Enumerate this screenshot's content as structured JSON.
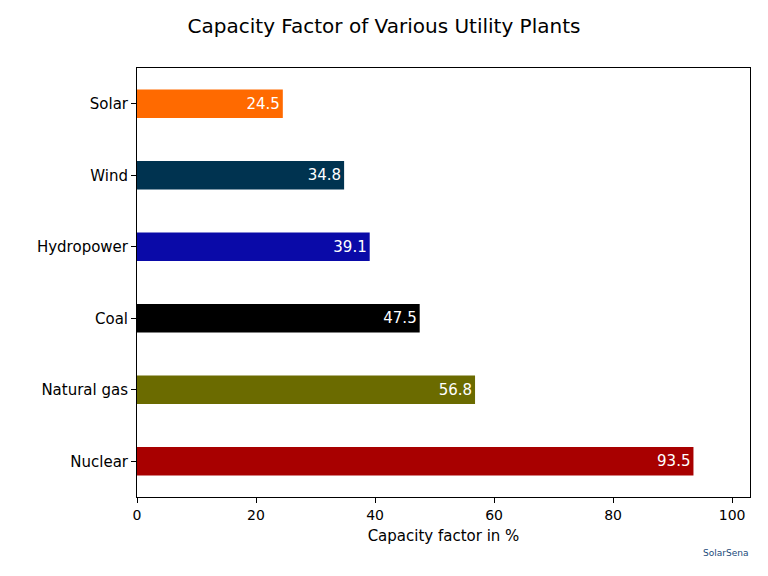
{
  "chart_data": {
    "type": "bar",
    "orientation": "horizontal",
    "title": "Capacity Factor of Various Utility Plants",
    "x_label": "Capacity factor in %",
    "categories": [
      "Solar",
      "Wind",
      "Hydropower",
      "Coal",
      "Natural gas",
      "Nuclear"
    ],
    "values": [
      24.5,
      34.8,
      39.1,
      47.5,
      56.8,
      93.5
    ],
    "colors": [
      "#ff6a00",
      "#003350",
      "#0a0aa8",
      "#000000",
      "#6b6b00",
      "#a80000"
    ],
    "xlim": [
      0,
      103
    ],
    "xticks": [
      0,
      20,
      40,
      60,
      80,
      100
    ],
    "grid": false,
    "data_labels": true,
    "annotations": [
      "SolarSena"
    ]
  }
}
